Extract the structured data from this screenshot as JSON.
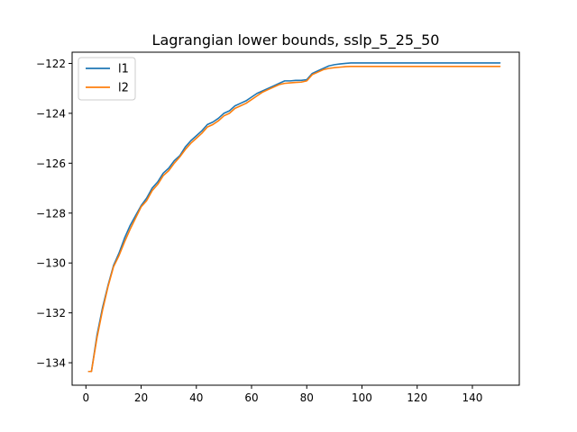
{
  "chart_data": {
    "type": "line",
    "title": "Lagrangian lower bounds, sslp_5_25_50",
    "xlabel": "",
    "ylabel": "",
    "xlim": [
      -5,
      157
    ],
    "ylim": [
      -134.9,
      -121.55
    ],
    "x_ticks": [
      0,
      20,
      40,
      60,
      80,
      100,
      120,
      140
    ],
    "y_ticks": [
      -134,
      -132,
      -130,
      -128,
      -126,
      -124,
      -122
    ],
    "grid": false,
    "legend_position": "upper left",
    "series": [
      {
        "name": "l1",
        "color": "#1f77b4",
        "points": [
          [
            1,
            -134.35
          ],
          [
            2,
            -134.35
          ],
          [
            4,
            -132.9
          ],
          [
            6,
            -131.8
          ],
          [
            8,
            -130.9
          ],
          [
            10,
            -130.1
          ],
          [
            12,
            -129.6
          ],
          [
            14,
            -129.0
          ],
          [
            16,
            -128.5
          ],
          [
            18,
            -128.1
          ],
          [
            20,
            -127.7
          ],
          [
            22,
            -127.4
          ],
          [
            24,
            -127.0
          ],
          [
            26,
            -126.75
          ],
          [
            28,
            -126.4
          ],
          [
            30,
            -126.2
          ],
          [
            32,
            -125.9
          ],
          [
            34,
            -125.7
          ],
          [
            36,
            -125.35
          ],
          [
            38,
            -125.1
          ],
          [
            40,
            -124.9
          ],
          [
            42,
            -124.7
          ],
          [
            44,
            -124.45
          ],
          [
            46,
            -124.35
          ],
          [
            48,
            -124.2
          ],
          [
            50,
            -124.0
          ],
          [
            52,
            -123.9
          ],
          [
            54,
            -123.7
          ],
          [
            56,
            -123.6
          ],
          [
            58,
            -123.5
          ],
          [
            60,
            -123.35
          ],
          [
            62,
            -123.2
          ],
          [
            64,
            -123.1
          ],
          [
            66,
            -123.0
          ],
          [
            68,
            -122.9
          ],
          [
            70,
            -122.8
          ],
          [
            72,
            -122.7
          ],
          [
            74,
            -122.7
          ],
          [
            76,
            -122.68
          ],
          [
            78,
            -122.68
          ],
          [
            80,
            -122.65
          ],
          [
            82,
            -122.4
          ],
          [
            84,
            -122.3
          ],
          [
            86,
            -122.2
          ],
          [
            88,
            -122.1
          ],
          [
            90,
            -122.05
          ],
          [
            92,
            -122.02
          ],
          [
            94,
            -122.0
          ],
          [
            96,
            -121.98
          ],
          [
            100,
            -121.98
          ],
          [
            120,
            -121.98
          ],
          [
            140,
            -121.98
          ],
          [
            150,
            -121.98
          ]
        ]
      },
      {
        "name": "l2",
        "color": "#ff7f0e",
        "points": [
          [
            1,
            -134.35
          ],
          [
            2,
            -134.35
          ],
          [
            4,
            -133.0
          ],
          [
            6,
            -131.9
          ],
          [
            8,
            -130.95
          ],
          [
            10,
            -130.15
          ],
          [
            12,
            -129.7
          ],
          [
            14,
            -129.15
          ],
          [
            16,
            -128.65
          ],
          [
            18,
            -128.2
          ],
          [
            20,
            -127.75
          ],
          [
            22,
            -127.5
          ],
          [
            24,
            -127.1
          ],
          [
            26,
            -126.85
          ],
          [
            28,
            -126.5
          ],
          [
            30,
            -126.3
          ],
          [
            32,
            -126.0
          ],
          [
            34,
            -125.75
          ],
          [
            36,
            -125.45
          ],
          [
            38,
            -125.2
          ],
          [
            40,
            -125.0
          ],
          [
            42,
            -124.8
          ],
          [
            44,
            -124.55
          ],
          [
            46,
            -124.45
          ],
          [
            48,
            -124.3
          ],
          [
            50,
            -124.1
          ],
          [
            52,
            -124.0
          ],
          [
            54,
            -123.8
          ],
          [
            56,
            -123.7
          ],
          [
            58,
            -123.6
          ],
          [
            60,
            -123.45
          ],
          [
            62,
            -123.3
          ],
          [
            64,
            -123.15
          ],
          [
            66,
            -123.05
          ],
          [
            68,
            -122.95
          ],
          [
            70,
            -122.85
          ],
          [
            72,
            -122.8
          ],
          [
            74,
            -122.78
          ],
          [
            76,
            -122.76
          ],
          [
            78,
            -122.75
          ],
          [
            80,
            -122.7
          ],
          [
            82,
            -122.45
          ],
          [
            84,
            -122.35
          ],
          [
            86,
            -122.25
          ],
          [
            88,
            -122.2
          ],
          [
            90,
            -122.17
          ],
          [
            92,
            -122.15
          ],
          [
            94,
            -122.13
          ],
          [
            96,
            -122.12
          ],
          [
            100,
            -122.12
          ],
          [
            120,
            -122.12
          ],
          [
            140,
            -122.12
          ],
          [
            150,
            -122.12
          ]
        ]
      }
    ]
  }
}
